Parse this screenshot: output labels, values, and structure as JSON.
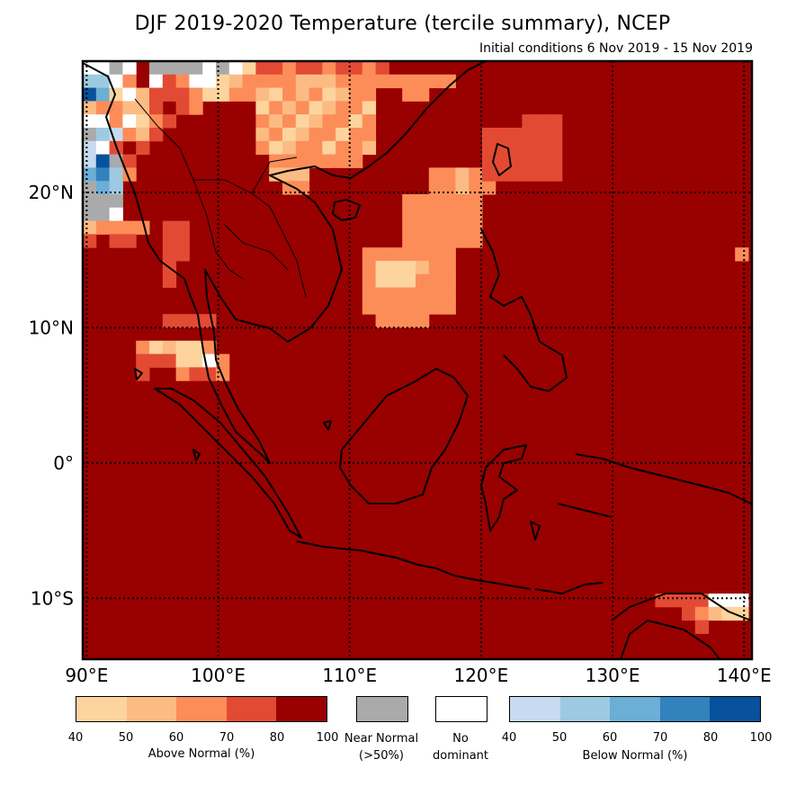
{
  "title": "DJF 2019-2020 Temperature (tercile summary), NCEP",
  "subtitle": "Initial conditions 6 Nov 2019 - 15 Nov 2019",
  "map": {
    "lon_ticks": [
      "90°E",
      "100°E",
      "110°E",
      "120°E",
      "130°E",
      "140°E"
    ],
    "lat_ticks": [
      "20°N",
      "10°N",
      "0°",
      "10°S"
    ],
    "background_category": "Above Normal 80-100",
    "colors": {
      "above_40": "#fdd49e",
      "above_50": "#fdbb84",
      "above_60": "#fc8d59",
      "above_70": "#e34a33",
      "above_80": "#990000",
      "near_normal": "#aaaaaa",
      "no_dominant": "#ffffff",
      "below_40": "#c6dbef",
      "below_50": "#9ecae1",
      "below_60": "#6baed6",
      "below_70": "#3182bd",
      "below_80": "#08519c"
    }
  },
  "legend": {
    "above": {
      "ticks": [
        "40",
        "50",
        "60",
        "70",
        "80",
        "100"
      ],
      "caption": "Above Normal (%)",
      "colors": [
        "#fdd49e",
        "#fdbb84",
        "#fc8d59",
        "#e34a33",
        "#990000"
      ]
    },
    "near_normal": {
      "label_line1": "Near Normal",
      "label_line2": "(>50%)",
      "color": "#aaaaaa"
    },
    "no_dominant": {
      "label_line1": "No",
      "label_line2": "dominant",
      "color": "#ffffff"
    },
    "below": {
      "ticks": [
        "40",
        "50",
        "60",
        "70",
        "80",
        "100"
      ],
      "caption": "Below Normal (%)",
      "colors": [
        "#c6dbef",
        "#9ecae1",
        "#6baed6",
        "#3182bd",
        "#08519c"
      ]
    }
  }
}
